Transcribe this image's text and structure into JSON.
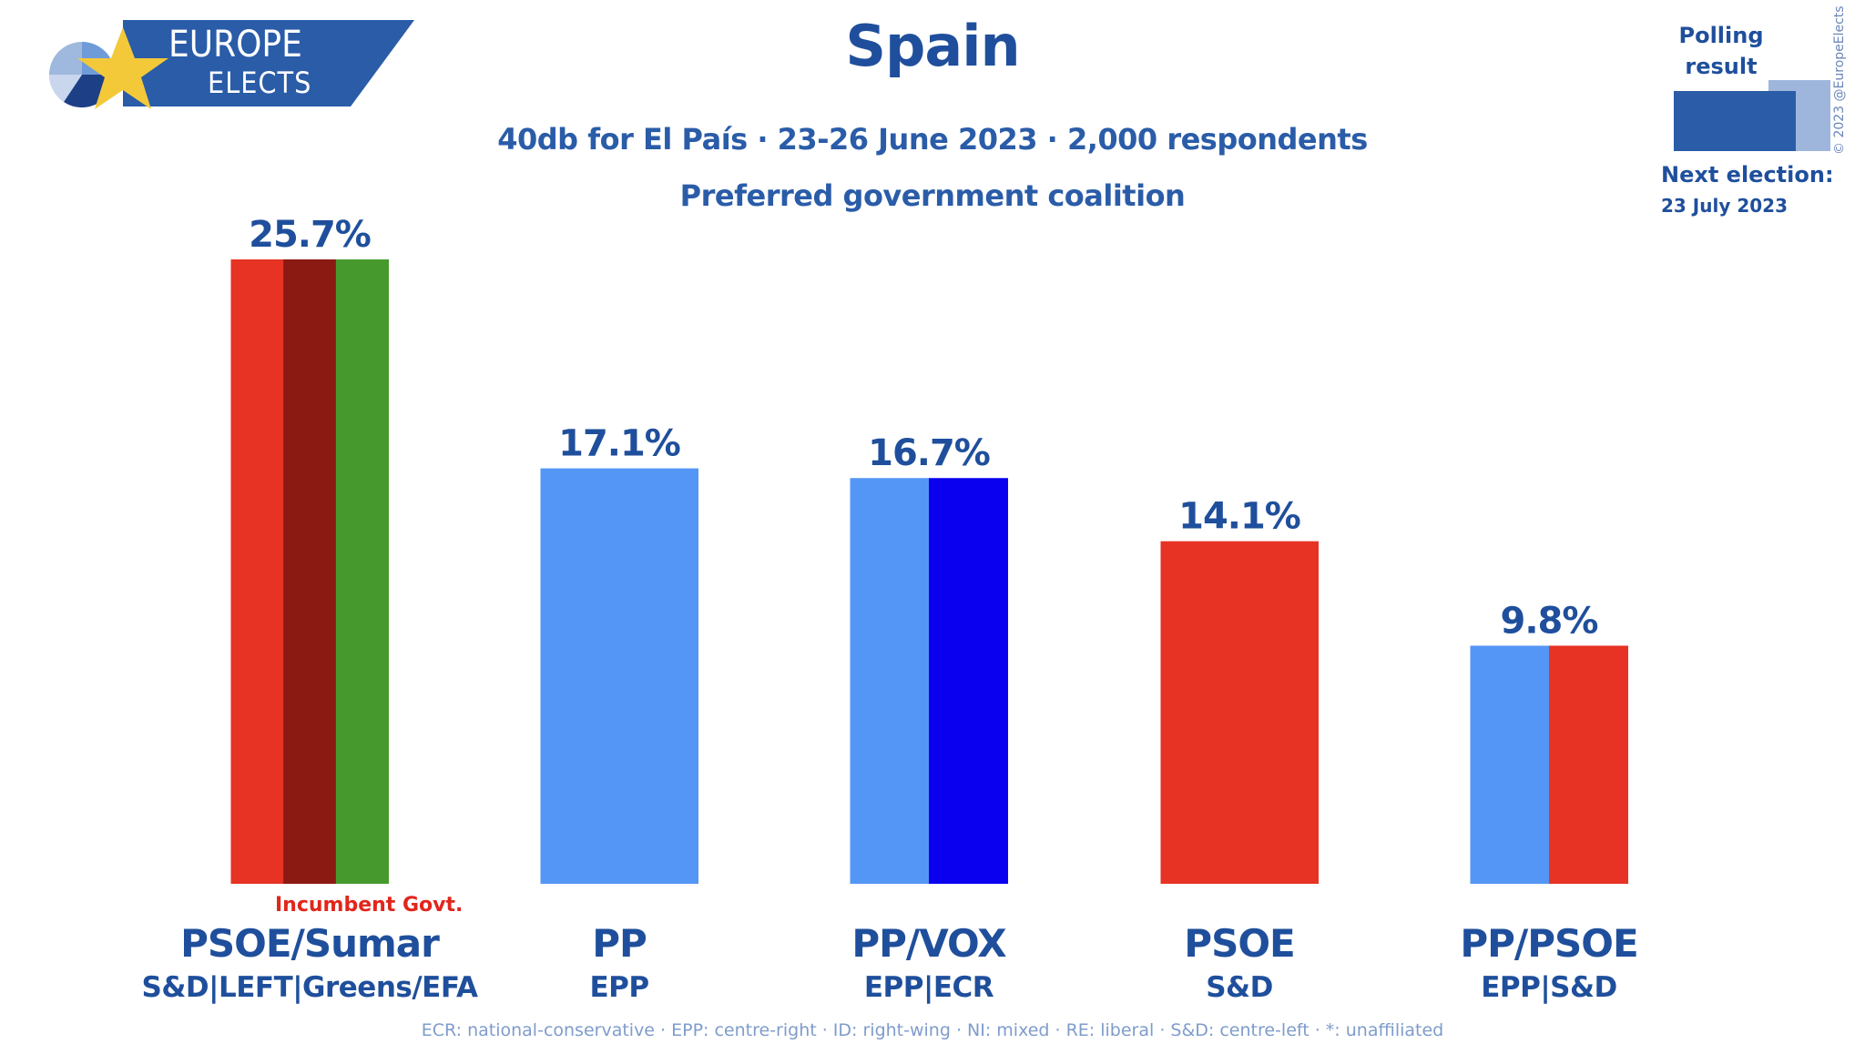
{
  "header": {
    "title": "Spain",
    "subtitle": "40db for El País · 23-26 June 2023 · 2,000 respondents",
    "question": "Preferred government coalition"
  },
  "logo": {
    "line1": "EUROPE",
    "line2": "ELECTS"
  },
  "legend": {
    "polling_label_1": "Polling",
    "polling_label_2": "result"
  },
  "next_election": {
    "label": "Next election:",
    "date": "23 July 2023"
  },
  "copyright": "© 2023 @EuropeElects",
  "incumbent_label": "Incumbent Govt.",
  "footer": "ECR: national-conservative · EPP: centre-right · ID: right-wing · NI: mixed · RE: liberal · S&D: centre-left · *: unaffiliated",
  "colors": {
    "brand_blue": "#1f4f9c",
    "pp_blue": "#5496f5",
    "vox_blue": "#0a00ef",
    "psoe_red": "#e63324",
    "sumar_darkred": "#8b1a12",
    "greens_green": "#469a2d"
  },
  "chart_data": {
    "type": "bar",
    "title": "Spain",
    "ylim": [
      0,
      25.7
    ],
    "categories": [
      "PSOE/Sumar",
      "PP",
      "PP/VOX",
      "PSOE",
      "PP/PSOE"
    ],
    "groups": [
      "S&D|LEFT|Greens/EFA",
      "EPP",
      "EPP|ECR",
      "S&D",
      "EPP|S&D"
    ],
    "values": [
      25.7,
      17.1,
      16.7,
      14.1,
      9.8
    ],
    "labels": [
      "25.7%",
      "17.1%",
      "16.7%",
      "14.1%",
      "9.8%"
    ],
    "stripes": [
      [
        "#e63324",
        "#8b1a12",
        "#469a2d"
      ],
      [
        "#5496f5"
      ],
      [
        "#5496f5",
        "#0a00ef"
      ],
      [
        "#e63324"
      ],
      [
        "#5496f5",
        "#e63324"
      ]
    ],
    "incumbent_index": 0
  }
}
